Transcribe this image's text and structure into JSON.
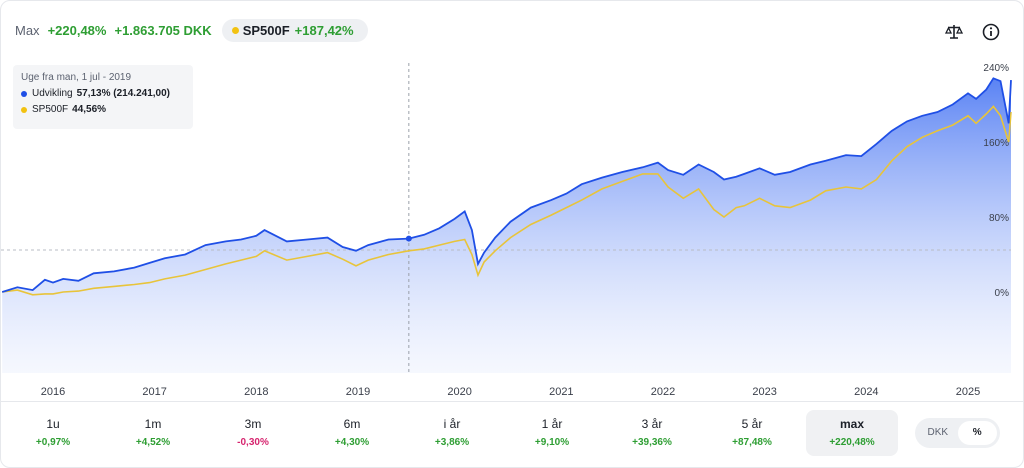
{
  "header": {
    "period_label": "Max",
    "return_pct": "+220,48%",
    "return_amount": "+1.863.705 DKK",
    "benchmark_name": "SP500F",
    "benchmark_pct": "+187,42%"
  },
  "icons": {
    "compare": "scale-icon",
    "info": "info-icon"
  },
  "tooltip": {
    "date": "Uge fra man, 1 jul - 2019",
    "series1_label": "Udvikling",
    "series1_value": "57,13% (214.241,00)",
    "series2_label": "SP500F",
    "series2_value": "44,56%"
  },
  "colors": {
    "portfolio": "#1f4fe6",
    "benchmark": "#e8c43a",
    "positive": "#2e9e33",
    "negative": "#d6246e"
  },
  "chart_data": {
    "type": "line",
    "x_ticks": [
      "2016",
      "2017",
      "2018",
      "2019",
      "2020",
      "2021",
      "2022",
      "2023",
      "2024",
      "2025"
    ],
    "y_ticks": [
      "0%",
      "80%",
      "160%",
      "240%"
    ],
    "ylim": [
      -50,
      260
    ],
    "grid": false,
    "cursor_x": 2019.5,
    "series": [
      {
        "name": "Udvikling",
        "x": [
          2015.5,
          2015.65,
          2015.8,
          2015.92,
          2016.0,
          2016.1,
          2016.25,
          2016.4,
          2016.6,
          2016.8,
          2016.95,
          2017.1,
          2017.3,
          2017.5,
          2017.7,
          2017.85,
          2018.0,
          2018.08,
          2018.3,
          2018.5,
          2018.7,
          2018.85,
          2018.98,
          2019.1,
          2019.3,
          2019.5,
          2019.65,
          2019.8,
          2019.95,
          2020.05,
          2020.12,
          2020.18,
          2020.24,
          2020.35,
          2020.5,
          2020.7,
          2020.9,
          2021.05,
          2021.2,
          2021.4,
          2021.6,
          2021.8,
          2021.95,
          2022.05,
          2022.2,
          2022.35,
          2022.5,
          2022.6,
          2022.72,
          2022.8,
          2022.95,
          2023.1,
          2023.25,
          2023.45,
          2023.6,
          2023.8,
          2023.95,
          2024.1,
          2024.25,
          2024.4,
          2024.55,
          2024.7,
          2024.85,
          2025.0,
          2025.08,
          2025.18,
          2025.25,
          2025.32,
          2025.4,
          2025.48
        ],
        "values": [
          0,
          5,
          2,
          13,
          10,
          14,
          12,
          20,
          22,
          26,
          31,
          36,
          40,
          50,
          54,
          56,
          60,
          66,
          54,
          56,
          58,
          48,
          44,
          50,
          56,
          57,
          61,
          68,
          78,
          86,
          66,
          30,
          42,
          58,
          75,
          90,
          98,
          105,
          115,
          122,
          128,
          133,
          138,
          130,
          125,
          136,
          128,
          120,
          123,
          126,
          132,
          125,
          128,
          136,
          140,
          146,
          145,
          158,
          172,
          182,
          188,
          192,
          200,
          212,
          206,
          216,
          228,
          225,
          180,
          226
        ]
      },
      {
        "name": "SP500F",
        "x": [
          2015.5,
          2015.65,
          2015.8,
          2015.92,
          2016.0,
          2016.1,
          2016.25,
          2016.4,
          2016.6,
          2016.8,
          2016.95,
          2017.1,
          2017.3,
          2017.5,
          2017.7,
          2017.85,
          2018.0,
          2018.08,
          2018.3,
          2018.5,
          2018.7,
          2018.85,
          2018.98,
          2019.1,
          2019.3,
          2019.5,
          2019.65,
          2019.8,
          2019.95,
          2020.05,
          2020.12,
          2020.18,
          2020.24,
          2020.35,
          2020.5,
          2020.7,
          2020.9,
          2021.05,
          2021.2,
          2021.4,
          2021.6,
          2021.8,
          2021.95,
          2022.05,
          2022.2,
          2022.35,
          2022.5,
          2022.6,
          2022.72,
          2022.8,
          2022.95,
          2023.1,
          2023.25,
          2023.45,
          2023.6,
          2023.8,
          2023.95,
          2024.1,
          2024.25,
          2024.4,
          2024.55,
          2024.7,
          2024.85,
          2025.0,
          2025.08,
          2025.18,
          2025.25,
          2025.32,
          2025.4,
          2025.48
        ],
        "values": [
          0,
          2,
          -3,
          -2,
          -2,
          0,
          1,
          4,
          6,
          8,
          10,
          14,
          18,
          24,
          30,
          34,
          38,
          44,
          34,
          38,
          42,
          35,
          28,
          34,
          40,
          44,
          46,
          50,
          54,
          56,
          40,
          18,
          32,
          44,
          58,
          72,
          82,
          90,
          98,
          110,
          118,
          126,
          126,
          112,
          100,
          110,
          88,
          80,
          90,
          92,
          100,
          92,
          90,
          98,
          108,
          112,
          110,
          120,
          140,
          155,
          165,
          172,
          178,
          188,
          180,
          190,
          198,
          188,
          160,
          192
        ]
      }
    ]
  },
  "tabs": [
    {
      "label": "1u",
      "change": "+0,97%",
      "sign": "pos"
    },
    {
      "label": "1m",
      "change": "+4,52%",
      "sign": "pos"
    },
    {
      "label": "3m",
      "change": "-0,30%",
      "sign": "neg"
    },
    {
      "label": "6m",
      "change": "+4,30%",
      "sign": "pos"
    },
    {
      "label": "i år",
      "change": "+3,86%",
      "sign": "pos"
    },
    {
      "label": "1 år",
      "change": "+9,10%",
      "sign": "pos"
    },
    {
      "label": "3 år",
      "change": "+39,36%",
      "sign": "pos"
    },
    {
      "label": "5 år",
      "change": "+87,48%",
      "sign": "pos"
    },
    {
      "label": "max",
      "change": "+220,48%",
      "sign": "pos",
      "active": true
    }
  ],
  "toggle": {
    "option1": "DKK",
    "option2": "%",
    "selected": "%"
  }
}
